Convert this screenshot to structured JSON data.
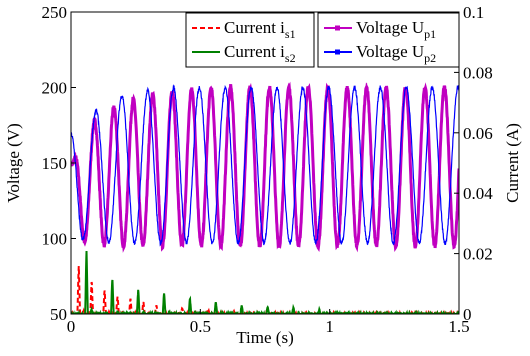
{
  "chart_data": {
    "type": "line",
    "xlabel": "Time (s)",
    "ylabel_left": "Voltage (V)",
    "ylabel_right": "Current (A)",
    "xlim": [
      0,
      1.5
    ],
    "ylim_left": [
      50,
      250
    ],
    "ylim_right": [
      0,
      0.1
    ],
    "x_ticks": [
      "0",
      "0.5",
      "1",
      "1.5"
    ],
    "y_left_ticks": [
      "50",
      "100",
      "150",
      "200",
      "250"
    ],
    "y_right_ticks": [
      "0",
      "0.02",
      "0.04",
      "0.06",
      "0.08",
      "0.1"
    ],
    "grid": false,
    "legend_left": [
      {
        "label": "Current i",
        "subscript": "s1",
        "color": "#ff0000",
        "style": "dashed"
      },
      {
        "label": "Current i",
        "subscript": "s2",
        "color": "#008000",
        "style": "solid"
      }
    ],
    "legend_right": [
      {
        "label": "Voltage U",
        "subscript": "p1",
        "color": "#c000c0",
        "style": "solid-marker"
      },
      {
        "label": "Voltage U",
        "subscript": "p2",
        "color": "#0000ff",
        "style": "solid-marker"
      }
    ],
    "series": [
      {
        "name": "Voltage Up1",
        "axis": "left",
        "color": "#c000c0",
        "x": [
          0,
          0.02,
          0.05,
          0.1,
          0.2,
          0.3,
          0.4,
          0.6,
          0.8,
          1.0,
          1.2,
          1.5
        ],
        "y_min": [
          150,
          100,
          98,
          96,
          95,
          95,
          95,
          95,
          95,
          95,
          95,
          95
        ],
        "y_max": [
          150,
          155,
          170,
          180,
          190,
          195,
          198,
          200,
          200,
          200,
          200,
          200
        ],
        "frequency_hz": 13.3
      },
      {
        "name": "Voltage Up2",
        "axis": "left",
        "color": "#0000ff",
        "x": [
          0,
          0.02,
          0.05,
          0.1,
          0.2,
          0.3,
          0.4,
          0.6,
          0.8,
          1.0,
          1.2,
          1.5
        ],
        "y_min": [
          100,
          100,
          99,
          98,
          97,
          97,
          97,
          97,
          97,
          97,
          97,
          97
        ],
        "y_max": [
          170,
          180,
          180,
          185,
          195,
          198,
          200,
          200,
          200,
          200,
          200,
          200
        ],
        "frequency_hz": 10.0
      },
      {
        "name": "Current is1",
        "axis": "right",
        "color": "#ff0000",
        "x": [
          0.03,
          0.08,
          0.13,
          0.18,
          0.23,
          0.28,
          0.33,
          0.43,
          0.53,
          0.63
        ],
        "y_peak": [
          0.016,
          0.011,
          0.008,
          0.006,
          0.005,
          0.004,
          0.003,
          0.002,
          0.0015,
          0.001
        ],
        "baseline": 0.0
      },
      {
        "name": "Current is2",
        "axis": "right",
        "color": "#008000",
        "x": [
          0.06,
          0.16,
          0.26,
          0.36,
          0.46,
          0.56,
          0.66,
          0.76,
          0.86,
          0.96
        ],
        "y_peak": [
          0.021,
          0.012,
          0.008,
          0.007,
          0.005,
          0.004,
          0.003,
          0.0025,
          0.002,
          0.0015
        ],
        "baseline": 0.0
      }
    ]
  }
}
